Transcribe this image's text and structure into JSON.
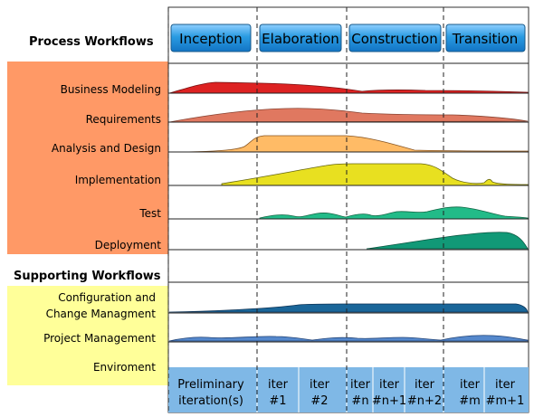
{
  "process_workflows": {
    "title": "Process Workflows",
    "disciplines": [
      {
        "label": "Business Modeling"
      },
      {
        "label": "Requirements"
      },
      {
        "label": "Analysis and Design"
      },
      {
        "label": "Implementation"
      },
      {
        "label": "Test"
      },
      {
        "label": "Deployment"
      }
    ]
  },
  "supporting_workflows": {
    "title": "Supporting Workflows",
    "disciplines": [
      {
        "label": [
          "Configuration and",
          "Change Managment"
        ]
      },
      {
        "label": "Project Management"
      },
      {
        "label": "Enviroment"
      }
    ]
  },
  "phases": [
    "Inception",
    "Elaboration",
    "Construction",
    "Transition"
  ],
  "iterations": [
    [
      "Preliminary",
      "iteration(s)"
    ],
    [
      "iter",
      "#1"
    ],
    [
      "iter",
      "#2"
    ],
    [
      "iter",
      "#n"
    ],
    [
      "iter",
      "#n+1"
    ],
    [
      "iter",
      "#n+2"
    ],
    [
      "iter",
      "#m"
    ],
    [
      "iter",
      "#m+1"
    ]
  ],
  "colors": {
    "process_band": "#ff9966",
    "supporting_band": "#ffff99",
    "phase_button": "#2a9be2",
    "iteration_bar": "#7fb8e6",
    "business_modeling": "#dd2222",
    "requirements": "#e07860",
    "analysis_design": "#ffbb66",
    "implementation": "#e8e020",
    "test": "#22bb88",
    "deployment": "#119977",
    "configuration": "#1a6699",
    "project_management": "#5588cc"
  }
}
